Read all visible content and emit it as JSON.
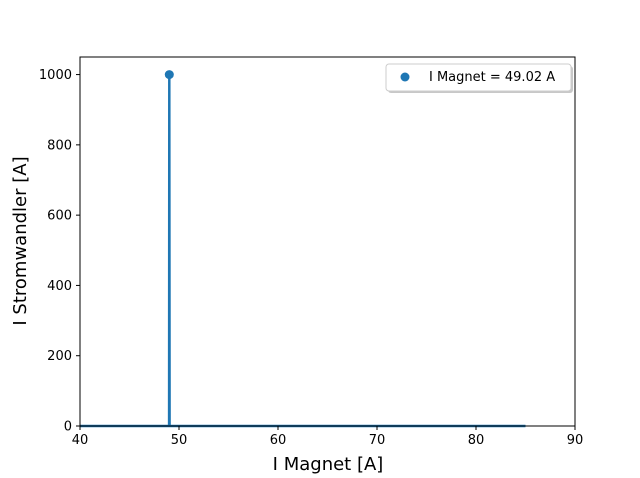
{
  "chart_data": {
    "type": "line",
    "title": "",
    "xlabel": "I Magnet  [A]",
    "ylabel": "I Stromwandler [A]",
    "xlim": [
      40,
      90
    ],
    "ylim": [
      0,
      1050
    ],
    "xticks": [
      40,
      50,
      60,
      70,
      80,
      90
    ],
    "yticks": [
      0,
      200,
      400,
      600,
      800,
      1000
    ],
    "grid": false,
    "legend_position": "top-right",
    "series": [
      {
        "name": "I Stromwandler",
        "type": "line",
        "color": "#1f77b4",
        "x": [
          40,
          48.95,
          49.0,
          49.02,
          49.05,
          49.1,
          85
        ],
        "y": [
          0,
          0,
          0,
          1000,
          0,
          0,
          0
        ]
      },
      {
        "name": "I Magnet = 49.02 A",
        "type": "scatter",
        "color": "#1f77b4",
        "x": [
          49.02
        ],
        "y": [
          1000
        ]
      }
    ],
    "legend": [
      {
        "label": "I Magnet = 49.02 A",
        "marker": "circle",
        "color": "#1f77b4"
      }
    ]
  }
}
